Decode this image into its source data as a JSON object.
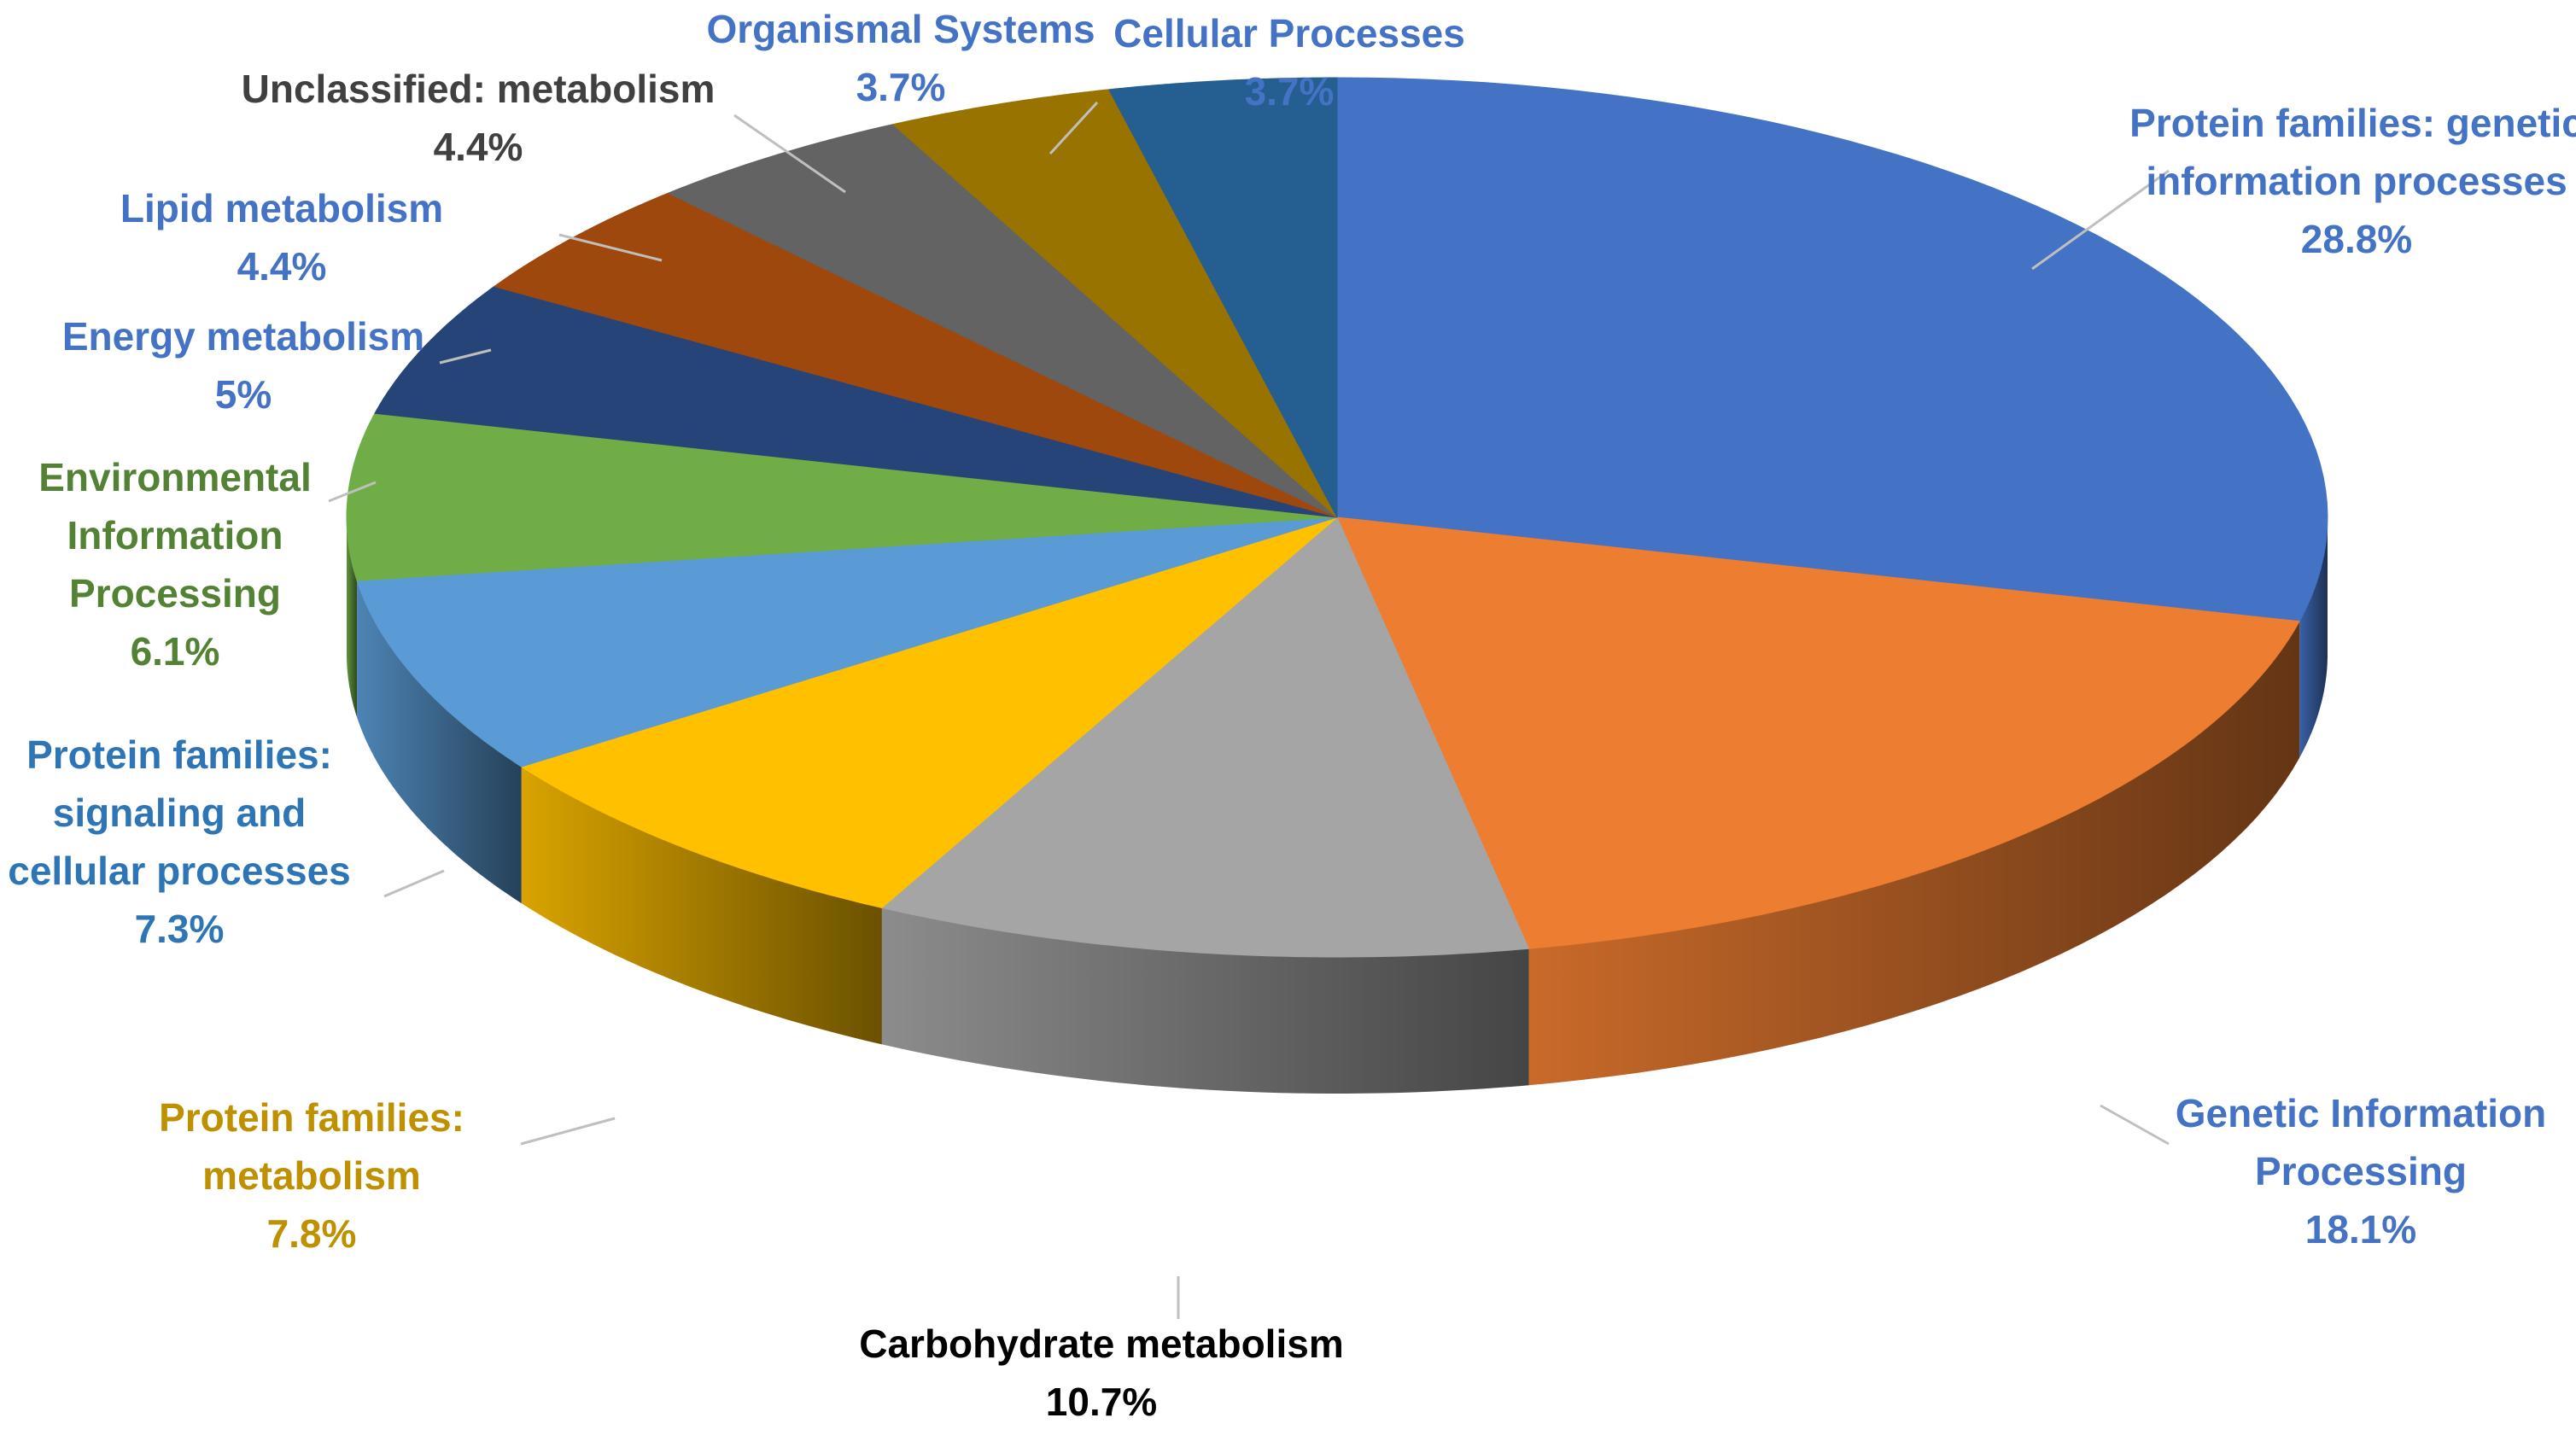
{
  "chart_data": {
    "type": "pie",
    "variant": "3d",
    "start_angle_deg": 90,
    "direction": "clockwise",
    "slices": [
      {
        "label": "Protein families: genetic information processes",
        "display_label": [
          "Protein families: genetic",
          "information processes"
        ],
        "value": 28.8,
        "value_text": "28.8%",
        "color": "#4472C4",
        "label_color": "#4472C4"
      },
      {
        "label": "Genetic Information Processing",
        "display_label": [
          "Genetic Information",
          "Processing"
        ],
        "value": 18.1,
        "value_text": "18.1%",
        "color": "#ED7D31",
        "label_color": "#4472C4"
      },
      {
        "label": "Carbohydrate metabolism",
        "display_label": [
          "Carbohydrate metabolism"
        ],
        "value": 10.7,
        "value_text": "10.7%",
        "color": "#A5A5A5",
        "label_color": "#000000"
      },
      {
        "label": "Protein families: metabolism",
        "display_label": [
          "Protein families:",
          "metabolism"
        ],
        "value": 7.8,
        "value_text": "7.8%",
        "color": "#FFC000",
        "label_color": "#BF9000"
      },
      {
        "label": "Protein families: signaling and cellular processes",
        "display_label": [
          "Protein families:",
          "signaling and",
          "cellular processes"
        ],
        "value": 7.3,
        "value_text": "7.3%",
        "color": "#5B9BD5",
        "label_color": "#2E75B6"
      },
      {
        "label": "Environmental Information Processing",
        "display_label": [
          "Environmental",
          "Information",
          "Processing"
        ],
        "value": 6.1,
        "value_text": "6.1%",
        "color": "#70AD47",
        "label_color": "#548235"
      },
      {
        "label": "Energy metabolism",
        "display_label": [
          "Energy metabolism"
        ],
        "value": 5,
        "value_text": "5%",
        "color": "#264478",
        "label_color": "#4472C4"
      },
      {
        "label": "Lipid metabolism",
        "display_label": [
          "Lipid metabolism"
        ],
        "value": 4.4,
        "value_text": "4.4%",
        "color": "#9E480E",
        "label_color": "#4472C4"
      },
      {
        "label": "Unclassified: metabolism",
        "display_label": [
          "Unclassified: metabolism"
        ],
        "value": 4.4,
        "value_text": "4.4%",
        "color": "#636363",
        "label_color": "#404040"
      },
      {
        "label": "Organismal Systems",
        "display_label": [
          "Organismal Systems"
        ],
        "value": 3.7,
        "value_text": "3.7%",
        "color": "#997300",
        "label_color": "#4472C4"
      },
      {
        "label": "Cellular Processes",
        "display_label": [
          "Cellular Processes"
        ],
        "value": 3.7,
        "value_text": "3.7%",
        "color": "#255E91",
        "label_color": "#4472C4"
      }
    ],
    "legend": "none",
    "title": ""
  }
}
